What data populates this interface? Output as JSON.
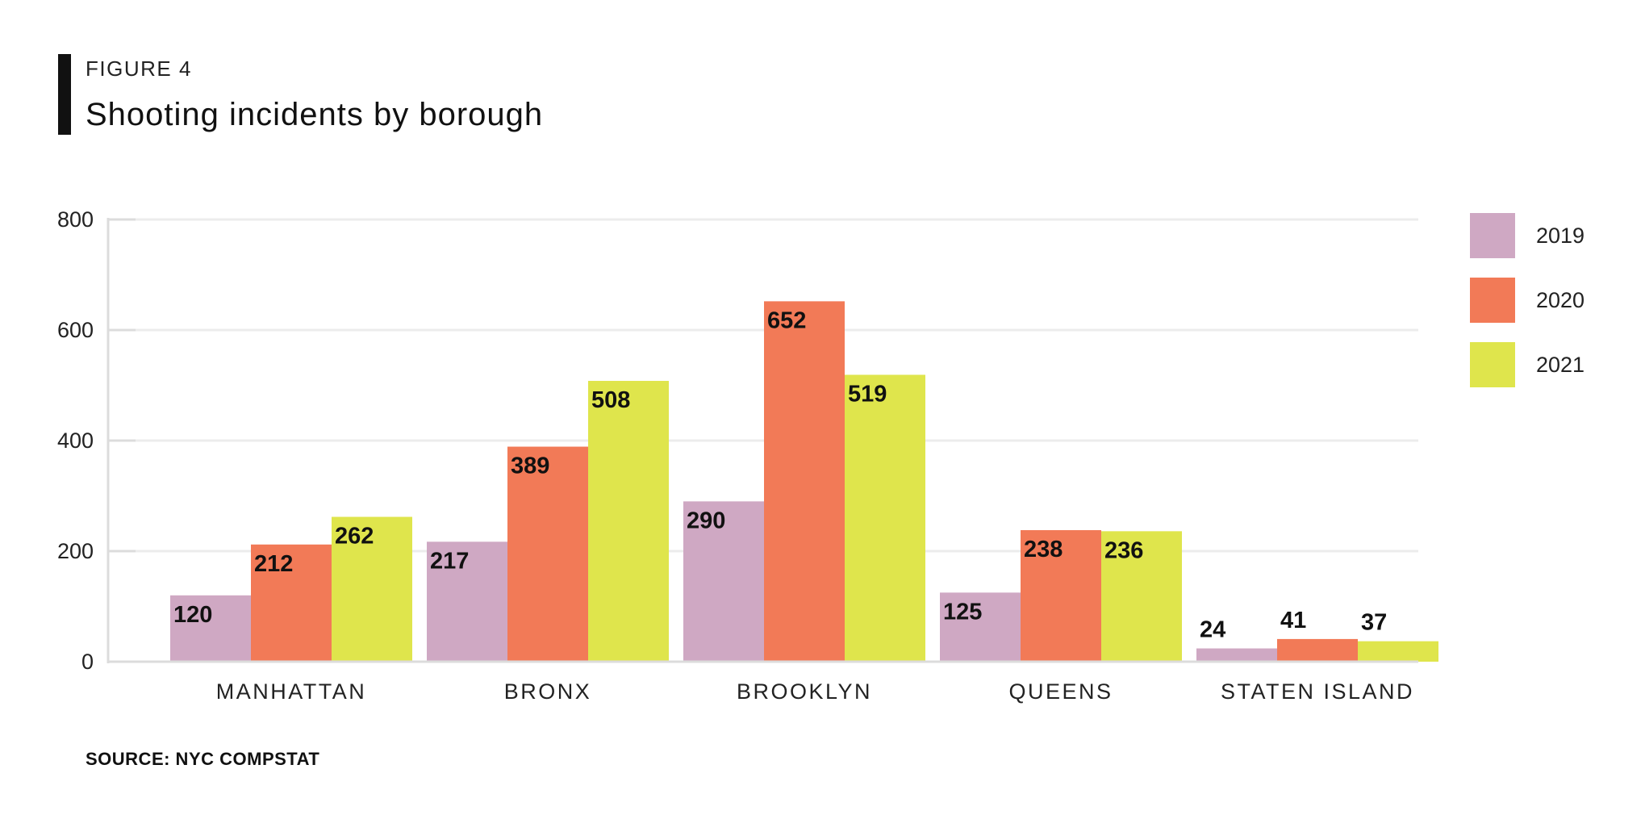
{
  "header": {
    "figure_label": "FIGURE 4",
    "title": "Shooting incidents by borough"
  },
  "source": "SOURCE: NYC COMPSTAT",
  "chart_data": {
    "type": "bar",
    "categories": [
      "MANHATTAN",
      "BRONX",
      "BROOKLYN",
      "QUEENS",
      "STATEN ISLAND"
    ],
    "series": [
      {
        "name": "2019",
        "color": "#cfa8c3",
        "values": [
          120,
          217,
          290,
          125,
          24
        ]
      },
      {
        "name": "2020",
        "color": "#f27a57",
        "values": [
          212,
          389,
          652,
          238,
          41
        ]
      },
      {
        "name": "2021",
        "color": "#dfe54c",
        "values": [
          262,
          508,
          519,
          236,
          37
        ]
      }
    ],
    "yticks": [
      0,
      200,
      400,
      600,
      800
    ],
    "ylim": [
      0,
      800
    ],
    "grid": true,
    "legend_position": "right",
    "data_labels": true
  }
}
